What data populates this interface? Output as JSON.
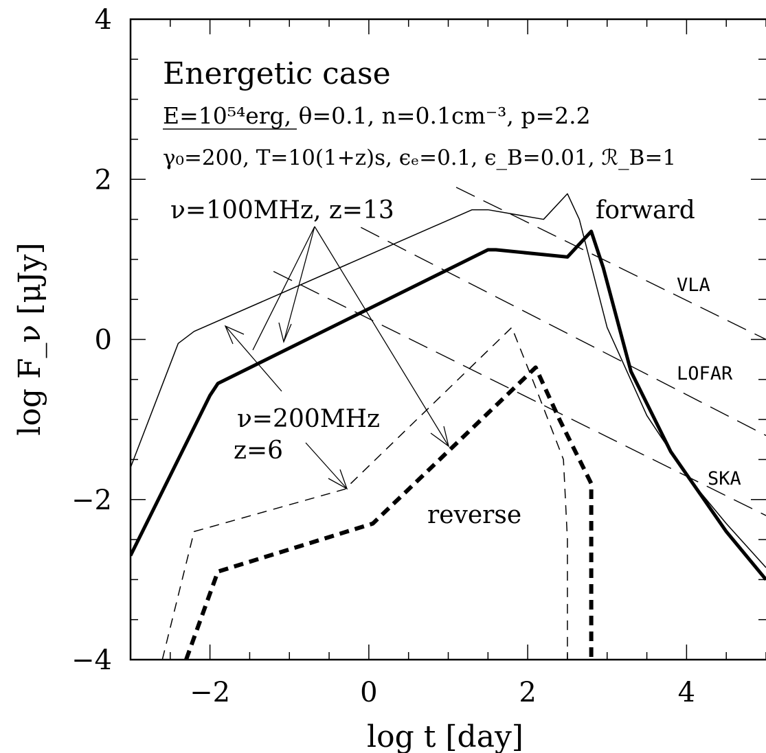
{
  "chart_data": {
    "type": "line",
    "title": "Energetic case",
    "xlabel": "log t [day]",
    "ylabel": "log F_ν [μJy]",
    "xlim": [
      -3,
      5
    ],
    "ylim": [
      -4,
      4
    ],
    "x_ticks": [
      -2,
      0,
      2,
      4
    ],
    "x_tick_labels": [
      "−2",
      "0",
      "2",
      "4"
    ],
    "y_ticks": [
      -4,
      -2,
      0,
      2,
      4
    ],
    "y_tick_labels": [
      "−4",
      "−2",
      "0",
      "2",
      "4"
    ],
    "grid": false,
    "params_line1": "E=10⁵⁴erg, θ=0.1, n=0.1cm⁻³, p=2.2",
    "params_line2": "γ₀=200, T=10(1+z)s, ϵₑ=0.1, ϵ_B=0.01, ℛ_B=1",
    "annotations": {
      "nu100": "ν=100MHz, z=13",
      "nu200_line1": "ν=200MHz",
      "nu200_line2": "z=6",
      "forward": "forward",
      "reverse": "reverse"
    },
    "series": [
      {
        "style": "thick solid",
        "x": [
          -3,
          -2.0,
          -1.9,
          1.5,
          1.6,
          2.5,
          2.8,
          2.95,
          3.3,
          3.8,
          4.5,
          5.0
        ],
        "y": [
          -2.7,
          -0.7,
          -0.55,
          1.12,
          1.12,
          1.03,
          1.35,
          0.9,
          -0.4,
          -1.4,
          -2.4,
          -3.0
        ]
      },
      {
        "style": "thin solid",
        "x": [
          -3,
          -2.4,
          -2.2,
          1.3,
          1.5,
          2.2,
          2.5,
          2.65,
          3.0,
          3.5,
          4.0,
          4.5,
          5.0
        ],
        "y": [
          -1.6,
          -0.05,
          0.1,
          1.62,
          1.62,
          1.5,
          1.82,
          1.5,
          0.15,
          -0.95,
          -1.7,
          -2.3,
          -2.85
        ]
      },
      {
        "style": "thin dashed",
        "x": [
          -2.6,
          -2.2,
          -0.3,
          1.8,
          2.1,
          2.45,
          2.5,
          2.5
        ],
        "y": [
          -4.0,
          -2.4,
          -1.87,
          0.15,
          -0.6,
          -1.5,
          -2.5,
          -4.0
        ]
      },
      {
        "style": "thick dashed",
        "x": [
          -2.3,
          -1.9,
          0.05,
          2.1,
          2.4,
          2.8,
          2.8,
          2.8
        ],
        "y": [
          -4.0,
          -2.9,
          -2.3,
          -0.35,
          -1.0,
          -1.8,
          -2.5,
          -4.0
        ]
      }
    ],
    "sensitivity_lines": [
      {
        "name": "VLA",
        "x": [
          1.1,
          5.0
        ],
        "y": [
          1.9,
          0.0
        ]
      },
      {
        "name": "LOFAR",
        "x": [
          -0.1,
          5.0
        ],
        "y": [
          1.4,
          -1.2
        ]
      },
      {
        "name": "SKA",
        "x": [
          -1.2,
          5.0
        ],
        "y": [
          0.85,
          -2.2
        ]
      }
    ]
  }
}
